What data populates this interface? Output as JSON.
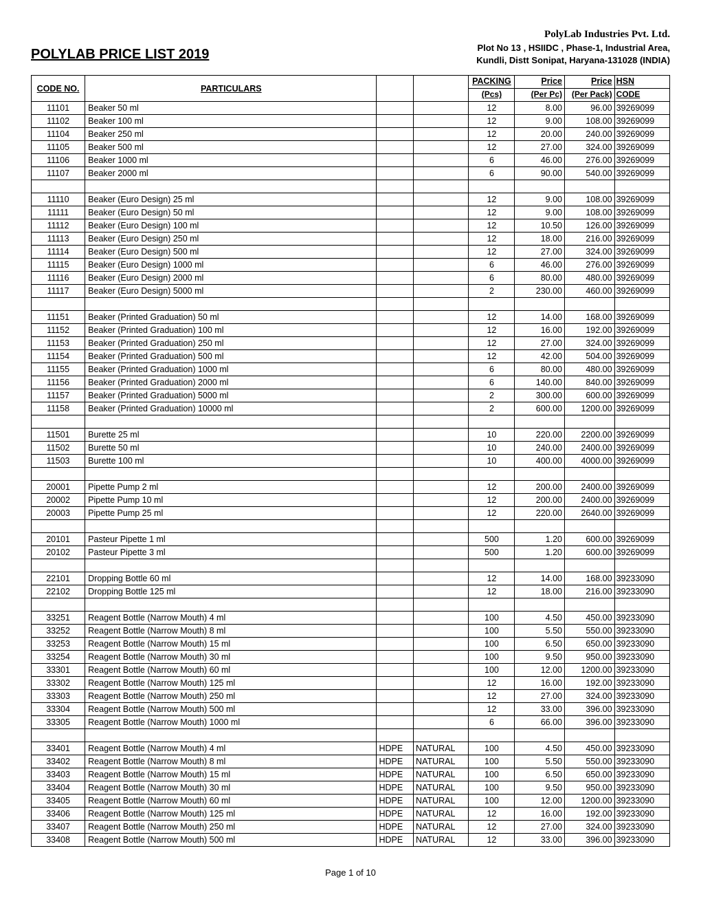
{
  "header": {
    "title": "POLYLAB PRICE LIST 2019",
    "company_name": "PolyLab Industries Pvt. Ltd.",
    "address_line1": "Plot No 13 , HSIIDC , Phase-1, Industrial Area,",
    "address_line2": "Kundli, Distt Sonipat, Haryana-131028 (INDIA)"
  },
  "columns": {
    "code": "CODE NO.",
    "particulars": "PARTICULARS",
    "packing": "PACKING",
    "pcs": "(Pcs)",
    "price_pc_h": "Price",
    "price_pc_s": "(Per   Pc)",
    "price_pk_h": "Price",
    "price_pk_s": "(Per Pack)",
    "hsn_h": "HSN",
    "hsn_s": "CODE"
  },
  "rows": [
    {
      "code": "11101",
      "part": "Beaker 50 ml",
      "mat": "",
      "color": "",
      "pack": "12",
      "pc": "8.00",
      "pk": "96.00",
      "hsn": "39269099"
    },
    {
      "code": "11102",
      "part": "Beaker 100 ml",
      "mat": "",
      "color": "",
      "pack": "12",
      "pc": "9.00",
      "pk": "108.00",
      "hsn": "39269099"
    },
    {
      "code": "11104",
      "part": "Beaker 250 ml",
      "mat": "",
      "color": "",
      "pack": "12",
      "pc": "20.00",
      "pk": "240.00",
      "hsn": "39269099"
    },
    {
      "code": "11105",
      "part": "Beaker 500 ml",
      "mat": "",
      "color": "",
      "pack": "12",
      "pc": "27.00",
      "pk": "324.00",
      "hsn": "39269099"
    },
    {
      "code": "11106",
      "part": "Beaker 1000 ml",
      "mat": "",
      "color": "",
      "pack": "6",
      "pc": "46.00",
      "pk": "276.00",
      "hsn": "39269099"
    },
    {
      "code": "11107",
      "part": "Beaker 2000 ml",
      "mat": "",
      "color": "",
      "pack": "6",
      "pc": "90.00",
      "pk": "540.00",
      "hsn": "39269099"
    },
    {
      "spacer": true
    },
    {
      "code": "11110",
      "part": "Beaker (Euro Design) 25 ml",
      "mat": "",
      "color": "",
      "pack": "12",
      "pc": "9.00",
      "pk": "108.00",
      "hsn": "39269099"
    },
    {
      "code": "11111",
      "part": "Beaker (Euro Design) 50 ml",
      "mat": "",
      "color": "",
      "pack": "12",
      "pc": "9.00",
      "pk": "108.00",
      "hsn": "39269099"
    },
    {
      "code": "11112",
      "part": "Beaker (Euro Design) 100 ml",
      "mat": "",
      "color": "",
      "pack": "12",
      "pc": "10.50",
      "pk": "126.00",
      "hsn": "39269099"
    },
    {
      "code": "11113",
      "part": "Beaker (Euro Design) 250 ml",
      "mat": "",
      "color": "",
      "pack": "12",
      "pc": "18.00",
      "pk": "216.00",
      "hsn": "39269099"
    },
    {
      "code": "11114",
      "part": "Beaker (Euro Design) 500 ml",
      "mat": "",
      "color": "",
      "pack": "12",
      "pc": "27.00",
      "pk": "324.00",
      "hsn": "39269099"
    },
    {
      "code": "11115",
      "part": "Beaker (Euro Design) 1000 ml",
      "mat": "",
      "color": "",
      "pack": "6",
      "pc": "46.00",
      "pk": "276.00",
      "hsn": "39269099"
    },
    {
      "code": "11116",
      "part": "Beaker (Euro Design) 2000 ml",
      "mat": "",
      "color": "",
      "pack": "6",
      "pc": "80.00",
      "pk": "480.00",
      "hsn": "39269099"
    },
    {
      "code": "11117",
      "part": "Beaker (Euro Design) 5000 ml",
      "mat": "",
      "color": "",
      "pack": "2",
      "pc": "230.00",
      "pk": "460.00",
      "hsn": "39269099"
    },
    {
      "spacer": true
    },
    {
      "code": "11151",
      "part": "Beaker (Printed Graduation) 50 ml",
      "mat": "",
      "color": "",
      "pack": "12",
      "pc": "14.00",
      "pk": "168.00",
      "hsn": "39269099"
    },
    {
      "code": "11152",
      "part": "Beaker (Printed Graduation) 100 ml",
      "mat": "",
      "color": "",
      "pack": "12",
      "pc": "16.00",
      "pk": "192.00",
      "hsn": "39269099"
    },
    {
      "code": "11153",
      "part": "Beaker (Printed Graduation) 250 ml",
      "mat": "",
      "color": "",
      "pack": "12",
      "pc": "27.00",
      "pk": "324.00",
      "hsn": "39269099"
    },
    {
      "code": "11154",
      "part": "Beaker (Printed Graduation) 500 ml",
      "mat": "",
      "color": "",
      "pack": "12",
      "pc": "42.00",
      "pk": "504.00",
      "hsn": "39269099"
    },
    {
      "code": "11155",
      "part": "Beaker (Printed Graduation) 1000 ml",
      "mat": "",
      "color": "",
      "pack": "6",
      "pc": "80.00",
      "pk": "480.00",
      "hsn": "39269099"
    },
    {
      "code": "11156",
      "part": "Beaker (Printed Graduation) 2000 ml",
      "mat": "",
      "color": "",
      "pack": "6",
      "pc": "140.00",
      "pk": "840.00",
      "hsn": "39269099"
    },
    {
      "code": "11157",
      "part": "Beaker (Printed Graduation) 5000 ml",
      "mat": "",
      "color": "",
      "pack": "2",
      "pc": "300.00",
      "pk": "600.00",
      "hsn": "39269099"
    },
    {
      "code": "11158",
      "part": "Beaker (Printed Graduation) 10000 ml",
      "mat": "",
      "color": "",
      "pack": "2",
      "pc": "600.00",
      "pk": "1200.00",
      "hsn": "39269099"
    },
    {
      "spacer": true
    },
    {
      "code": "11501",
      "part": "Burette 25 ml",
      "mat": "",
      "color": "",
      "pack": "10",
      "pc": "220.00",
      "pk": "2200.00",
      "hsn": "39269099"
    },
    {
      "code": "11502",
      "part": "Burette 50 ml",
      "mat": "",
      "color": "",
      "pack": "10",
      "pc": "240.00",
      "pk": "2400.00",
      "hsn": "39269099"
    },
    {
      "code": "11503",
      "part": "Burette 100 ml",
      "mat": "",
      "color": "",
      "pack": "10",
      "pc": "400.00",
      "pk": "4000.00",
      "hsn": "39269099"
    },
    {
      "spacer": true
    },
    {
      "code": "20001",
      "part": "Pipette Pump 2 ml",
      "mat": "",
      "color": "",
      "pack": "12",
      "pc": "200.00",
      "pk": "2400.00",
      "hsn": "39269099"
    },
    {
      "code": "20002",
      "part": "Pipette Pump 10 ml",
      "mat": "",
      "color": "",
      "pack": "12",
      "pc": "200.00",
      "pk": "2400.00",
      "hsn": "39269099"
    },
    {
      "code": "20003",
      "part": "Pipette Pump 25 ml",
      "mat": "",
      "color": "",
      "pack": "12",
      "pc": "220.00",
      "pk": "2640.00",
      "hsn": "39269099"
    },
    {
      "spacer": true
    },
    {
      "code": "20101",
      "part": "Pasteur Pipette 1 ml",
      "mat": "",
      "color": "",
      "pack": "500",
      "pc": "1.20",
      "pk": "600.00",
      "hsn": "39269099"
    },
    {
      "code": "20102",
      "part": "Pasteur Pipette 3 ml",
      "mat": "",
      "color": "",
      "pack": "500",
      "pc": "1.20",
      "pk": "600.00",
      "hsn": "39269099"
    },
    {
      "spacer": true
    },
    {
      "code": "22101",
      "part": "Dropping Bottle 60 ml",
      "mat": "",
      "color": "",
      "pack": "12",
      "pc": "14.00",
      "pk": "168.00",
      "hsn": "39233090"
    },
    {
      "code": "22102",
      "part": "Dropping Bottle 125 ml",
      "mat": "",
      "color": "",
      "pack": "12",
      "pc": "18.00",
      "pk": "216.00",
      "hsn": "39233090"
    },
    {
      "spacer": true
    },
    {
      "code": "33251",
      "part": "Reagent Bottle (Narrow Mouth) 4 ml",
      "mat": "",
      "color": "",
      "pack": "100",
      "pc": "4.50",
      "pk": "450.00",
      "hsn": "39233090"
    },
    {
      "code": "33252",
      "part": "Reagent Bottle (Narrow Mouth) 8 ml",
      "mat": "",
      "color": "",
      "pack": "100",
      "pc": "5.50",
      "pk": "550.00",
      "hsn": "39233090"
    },
    {
      "code": "33253",
      "part": "Reagent Bottle (Narrow Mouth) 15 ml",
      "mat": "",
      "color": "",
      "pack": "100",
      "pc": "6.50",
      "pk": "650.00",
      "hsn": "39233090"
    },
    {
      "code": "33254",
      "part": "Reagent Bottle (Narrow Mouth) 30 ml",
      "mat": "",
      "color": "",
      "pack": "100",
      "pc": "9.50",
      "pk": "950.00",
      "hsn": "39233090"
    },
    {
      "code": "33301",
      "part": "Reagent Bottle (Narrow Mouth) 60 ml",
      "mat": "",
      "color": "",
      "pack": "100",
      "pc": "12.00",
      "pk": "1200.00",
      "hsn": "39233090"
    },
    {
      "code": "33302",
      "part": "Reagent Bottle (Narrow Mouth) 125 ml",
      "mat": "",
      "color": "",
      "pack": "12",
      "pc": "16.00",
      "pk": "192.00",
      "hsn": "39233090"
    },
    {
      "code": "33303",
      "part": "Reagent Bottle (Narrow Mouth) 250 ml",
      "mat": "",
      "color": "",
      "pack": "12",
      "pc": "27.00",
      "pk": "324.00",
      "hsn": "39233090"
    },
    {
      "code": "33304",
      "part": "Reagent Bottle (Narrow Mouth) 500 ml",
      "mat": "",
      "color": "",
      "pack": "12",
      "pc": "33.00",
      "pk": "396.00",
      "hsn": "39233090"
    },
    {
      "code": "33305",
      "part": "Reagent Bottle (Narrow Mouth) 1000 ml",
      "mat": "",
      "color": "",
      "pack": "6",
      "pc": "66.00",
      "pk": "396.00",
      "hsn": "39233090"
    },
    {
      "spacer": true
    },
    {
      "code": "33401",
      "part": "Reagent Bottle (Narrow Mouth) 4 ml",
      "mat": "HDPE",
      "color": "NATURAL",
      "pack": "100",
      "pc": "4.50",
      "pk": "450.00",
      "hsn": "39233090"
    },
    {
      "code": "33402",
      "part": "Reagent Bottle (Narrow Mouth) 8 ml",
      "mat": "HDPE",
      "color": "NATURAL",
      "pack": "100",
      "pc": "5.50",
      "pk": "550.00",
      "hsn": "39233090"
    },
    {
      "code": "33403",
      "part": "Reagent Bottle (Narrow Mouth) 15 ml",
      "mat": "HDPE",
      "color": "NATURAL",
      "pack": "100",
      "pc": "6.50",
      "pk": "650.00",
      "hsn": "39233090"
    },
    {
      "code": "33404",
      "part": "Reagent Bottle (Narrow Mouth) 30 ml",
      "mat": "HDPE",
      "color": "NATURAL",
      "pack": "100",
      "pc": "9.50",
      "pk": "950.00",
      "hsn": "39233090"
    },
    {
      "code": "33405",
      "part": "Reagent Bottle (Narrow Mouth) 60 ml",
      "mat": "HDPE",
      "color": "NATURAL",
      "pack": "100",
      "pc": "12.00",
      "pk": "1200.00",
      "hsn": "39233090"
    },
    {
      "code": "33406",
      "part": "Reagent Bottle (Narrow Mouth) 125 ml",
      "mat": "HDPE",
      "color": "NATURAL",
      "pack": "12",
      "pc": "16.00",
      "pk": "192.00",
      "hsn": "39233090"
    },
    {
      "code": "33407",
      "part": "Reagent Bottle (Narrow Mouth) 250 ml",
      "mat": "HDPE",
      "color": "NATURAL",
      "pack": "12",
      "pc": "27.00",
      "pk": "324.00",
      "hsn": "39233090"
    },
    {
      "code": "33408",
      "part": "Reagent Bottle (Narrow Mouth) 500 ml",
      "mat": "HDPE",
      "color": "NATURAL",
      "pack": "12",
      "pc": "33.00",
      "pk": "396.00",
      "hsn": "39233090"
    }
  ],
  "footer": "Page 1 of 10"
}
